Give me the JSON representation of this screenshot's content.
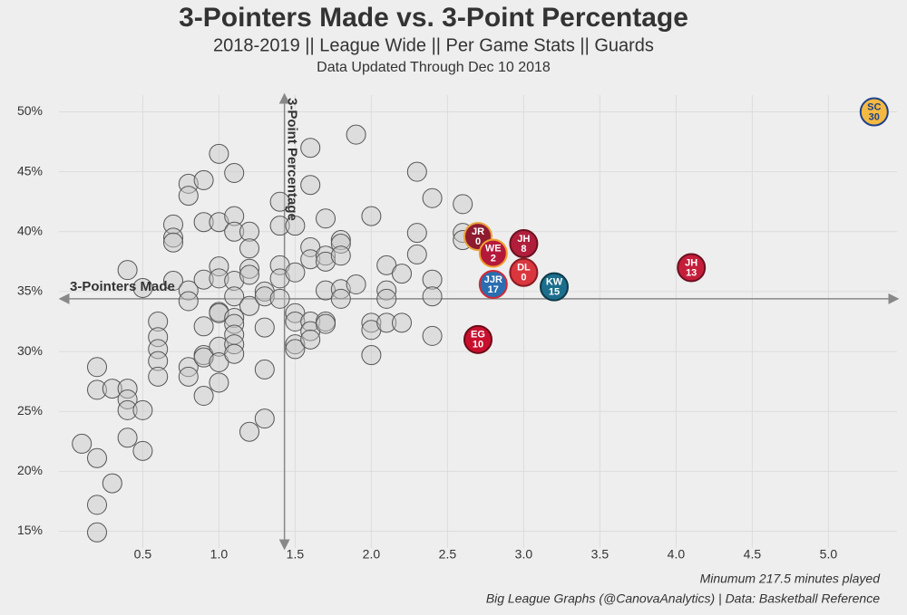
{
  "chart_data": {
    "type": "scatter",
    "title": "3-Pointers Made vs. 3-Point Percentage",
    "subtitle": "2018-2019 || League Wide || Per Game Stats || Guards",
    "updated": "Data Updated Through Dec 10 2018",
    "note": "Minumum 217.5 minutes played",
    "source": "Big League Graphs (@CanovaAnalytics) | Data: Basketball Reference",
    "x_ref_label": "3-Pointers Made",
    "y_ref_label": "3-Point Percentage",
    "x_ref": 1.43,
    "y_ref": 34.4,
    "xlim": [
      -0.05,
      5.45
    ],
    "ylim": [
      13.6,
      51.4
    ],
    "xticks": [
      0.5,
      {
        "value": 1,
        "label": "1.0"
      },
      1.5,
      {
        "value": 2,
        "label": "2.0"
      },
      2.5,
      {
        "value": 3,
        "label": "3.0"
      },
      3.5,
      {
        "value": 4,
        "label": "4.0"
      },
      4.5,
      {
        "value": 5,
        "label": "5.0"
      }
    ],
    "yticks": [
      {
        "value": 15,
        "label": "15%"
      },
      {
        "value": 20,
        "label": "20%"
      },
      {
        "value": 25,
        "label": "25%"
      },
      {
        "value": 30,
        "label": "30%"
      },
      {
        "value": 35,
        "label": "35%"
      },
      {
        "value": 40,
        "label": "40%"
      },
      {
        "value": 45,
        "label": "45%"
      },
      {
        "value": 50,
        "label": "50%"
      }
    ],
    "grid": true,
    "point_color": "#c8c8c8",
    "points": {
      "x": [
        0.1,
        0.2,
        0.2,
        0.2,
        0.2,
        0.2,
        0.3,
        0.3,
        0.4,
        0.4,
        0.4,
        0.4,
        0.4,
        0.5,
        0.5,
        0.5,
        0.6,
        0.6,
        0.6,
        0.6,
        0.6,
        0.7,
        0.7,
        0.7,
        0.7,
        0.8,
        0.8,
        0.8,
        0.8,
        0.8,
        0.8,
        0.9,
        0.9,
        0.9,
        0.9,
        0.9,
        0.9,
        0.9,
        1.0,
        1.0,
        1.0,
        1.0,
        1.0,
        1.0,
        1.0,
        1.0,
        1.0,
        1.1,
        1.1,
        1.1,
        1.1,
        1.1,
        1.1,
        1.1,
        1.1,
        1.1,
        1.1,
        1.2,
        1.2,
        1.2,
        1.2,
        1.2,
        1.2,
        1.3,
        1.3,
        1.3,
        1.3,
        1.3,
        1.4,
        1.4,
        1.4,
        1.4,
        1.4,
        1.5,
        1.5,
        1.5,
        1.5,
        1.5,
        1.5,
        1.6,
        1.6,
        1.6,
        1.6,
        1.6,
        1.6,
        1.6,
        1.7,
        1.7,
        1.7,
        1.7,
        1.7,
        1.7,
        1.8,
        1.8,
        1.8,
        1.8,
        1.8,
        1.9,
        1.9,
        2.0,
        2.0,
        2.0,
        2.0,
        2.1,
        2.1,
        2.1,
        2.1,
        2.2,
        2.2,
        2.3,
        2.3,
        2.3,
        2.4,
        2.4,
        2.4,
        2.4,
        2.6,
        2.6,
        2.6
      ],
      "y": [
        22.3,
        28.7,
        26.8,
        21.1,
        17.2,
        14.9,
        26.9,
        19.0,
        36.8,
        26.9,
        26.0,
        25.1,
        22.8,
        35.3,
        25.1,
        21.7,
        32.5,
        31.2,
        30.2,
        29.2,
        27.9,
        40.6,
        39.5,
        39.1,
        35.9,
        44.0,
        43.0,
        35.1,
        34.2,
        28.7,
        27.9,
        44.3,
        40.8,
        36.0,
        32.1,
        29.7,
        29.5,
        26.3,
        46.5,
        40.8,
        37.1,
        36.1,
        33.3,
        33.2,
        30.4,
        29.1,
        27.4,
        44.9,
        41.3,
        40.0,
        35.9,
        34.6,
        32.8,
        32.3,
        31.4,
        30.6,
        29.8,
        40.0,
        38.6,
        36.9,
        36.4,
        33.8,
        23.3,
        35.0,
        34.6,
        32.0,
        28.5,
        24.4,
        42.5,
        40.5,
        37.2,
        36.1,
        34.4,
        40.5,
        36.6,
        33.2,
        32.5,
        30.6,
        30.2,
        47.0,
        43.9,
        38.7,
        37.7,
        32.5,
        31.7,
        31.0,
        41.1,
        38.0,
        37.5,
        35.1,
        32.5,
        32.3,
        39.3,
        39.0,
        38.0,
        35.2,
        34.4,
        48.1,
        35.6,
        41.3,
        32.4,
        31.8,
        29.7,
        37.2,
        35.1,
        34.4,
        32.4,
        36.5,
        32.4,
        45.0,
        39.9,
        38.1,
        42.8,
        36.0,
        34.6,
        31.3,
        42.3,
        39.9,
        39.3
      ]
    },
    "highlighted": [
      {
        "x": 2.7,
        "y": 39.6,
        "initials": "JR",
        "number": "0",
        "color": "#8e1b30",
        "border": "#e9a23b"
      },
      {
        "x": 2.8,
        "y": 38.2,
        "initials": "WE",
        "number": "2",
        "color": "#b5193a",
        "border": "#f0a030"
      },
      {
        "x": 3.0,
        "y": 39.0,
        "initials": "JH",
        "number": "8",
        "color": "#b01e3c",
        "border": "#6b1020"
      },
      {
        "x": 3.0,
        "y": 36.6,
        "initials": "DL",
        "number": "0",
        "color": "#d9363e",
        "border": "#8a1a22"
      },
      {
        "x": 2.8,
        "y": 35.6,
        "initials": "JJR",
        "number": "17",
        "color": "#2a6db0",
        "border": "#d02a3a"
      },
      {
        "x": 3.2,
        "y": 35.4,
        "initials": "KW",
        "number": "15",
        "color": "#1c6e8c",
        "border": "#0d3a4a"
      },
      {
        "x": 4.1,
        "y": 37.0,
        "initials": "JH",
        "number": "13",
        "color": "#c41e3a",
        "border": "#6b1020"
      },
      {
        "x": 2.7,
        "y": 31.0,
        "initials": "EG",
        "number": "10",
        "color": "#c8102e",
        "border": "#6b0a18"
      },
      {
        "x": 5.3,
        "y": 50.0,
        "initials": "SC",
        "number": "30",
        "color": "#f4b942",
        "border": "#1d428a"
      }
    ]
  }
}
